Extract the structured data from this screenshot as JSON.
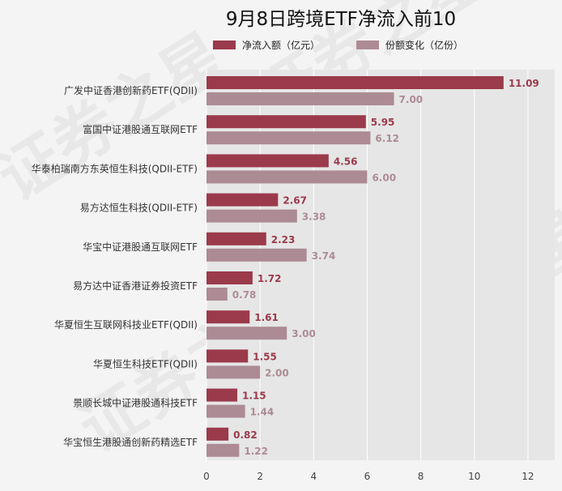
{
  "chart_data": {
    "type": "bar",
    "orientation": "horizontal",
    "title": "9月8日跨境ETF净流入前10",
    "categories": [
      "广发中证香港创新药ETF(QDII)",
      "富国中证港股通互联网ETF",
      "华泰柏瑞南方东英恒生科技(QDII-ETF)",
      "易方达恒生科技(QDII-ETF)",
      "华宝中证港股通互联网ETF",
      "易方达中证香港证券投资ETF",
      "华夏恒生互联网科技业ETF(QDII)",
      "华夏恒生科技ETF(QDII)",
      "景顺长城中证港股通科技ETF",
      "华宝恒生港股通创新药精选ETF"
    ],
    "series": [
      {
        "name": "净流入额（亿元）",
        "color": "#9b3a4b",
        "values": [
          11.09,
          5.95,
          4.56,
          2.67,
          2.23,
          1.72,
          1.61,
          1.55,
          1.15,
          0.82
        ],
        "labels": [
          "11.09",
          "5.95",
          "4.56",
          "2.67",
          "2.23",
          "1.72",
          "1.61",
          "1.55",
          "1.15",
          "0.82"
        ]
      },
      {
        "name": "份额变化（亿份）",
        "color": "#ad8b94",
        "values": [
          7.0,
          6.12,
          6.0,
          3.38,
          3.74,
          0.78,
          3.0,
          2.0,
          1.44,
          1.22
        ],
        "labels": [
          "7.00",
          "6.12",
          "6.00",
          "3.38",
          "3.74",
          "0.78",
          "3.00",
          "2.00",
          "1.44",
          "1.22"
        ]
      }
    ],
    "xlim": [
      0,
      13
    ],
    "xticks": [
      "0",
      "2",
      "4",
      "6",
      "8",
      "10",
      "12"
    ],
    "grid": "vertical",
    "legend": "top"
  },
  "watermark": "证券之星"
}
